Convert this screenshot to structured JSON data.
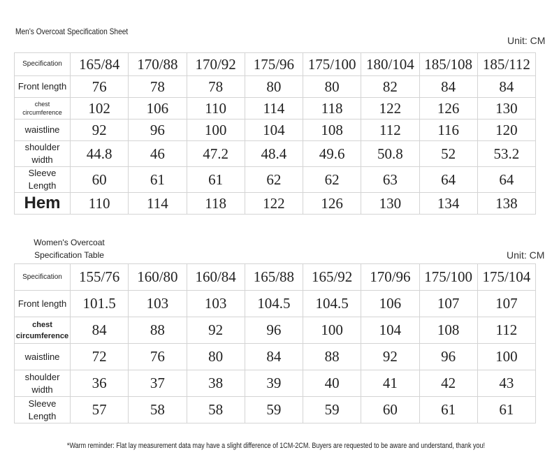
{
  "men_table": {
    "title": "Men's Overcoat Specification Sheet",
    "unit": "Unit: CM",
    "header": [
      "Specification",
      "165/84",
      "170/88",
      "170/92",
      "175/96",
      "175/100",
      "180/104",
      "185/108",
      "185/112"
    ],
    "rows": [
      [
        "Front length",
        "76",
        "78",
        "78",
        "80",
        "80",
        "82",
        "84",
        "84"
      ],
      [
        "chest circumference",
        "102",
        "106",
        "110",
        "114",
        "118",
        "122",
        "126",
        "130"
      ],
      [
        "waistline",
        "92",
        "96",
        "100",
        "104",
        "108",
        "112",
        "116",
        "120"
      ],
      [
        "shoulder width",
        "44.8",
        "46",
        "47.2",
        "48.4",
        "49.6",
        "50.8",
        "52",
        "53.2"
      ],
      [
        "Sleeve Length",
        "60",
        "61",
        "61",
        "62",
        "62",
        "63",
        "64",
        "64"
      ],
      [
        "Hem",
        "110",
        "114",
        "118",
        "122",
        "126",
        "130",
        "134",
        "138"
      ]
    ]
  },
  "women_table": {
    "title": "Women's Overcoat Specification Table",
    "unit": "Unit: CM",
    "header": [
      "Specification",
      "155/76",
      "160/80",
      "160/84",
      "165/88",
      "165/92",
      "170/96",
      "175/100",
      "175/104"
    ],
    "rows": [
      [
        "Front length",
        "101.5",
        "103",
        "103",
        "104.5",
        "104.5",
        "106",
        "107",
        "107"
      ],
      [
        "chest circumference",
        "84",
        "88",
        "92",
        "96",
        "100",
        "104",
        "108",
        "112"
      ],
      [
        "waistline",
        "72",
        "76",
        "80",
        "84",
        "88",
        "92",
        "96",
        "100"
      ],
      [
        "shoulder width",
        "36",
        "37",
        "38",
        "39",
        "40",
        "41",
        "42",
        "43"
      ],
      [
        "Sleeve Length",
        "57",
        "58",
        "58",
        "59",
        "59",
        "60",
        "61",
        "61"
      ]
    ]
  },
  "footer": "*Warm reminder: Flat lay measurement data may have a slight difference of 1CM-2CM. Buyers are requested to be aware and understand, thank you!"
}
